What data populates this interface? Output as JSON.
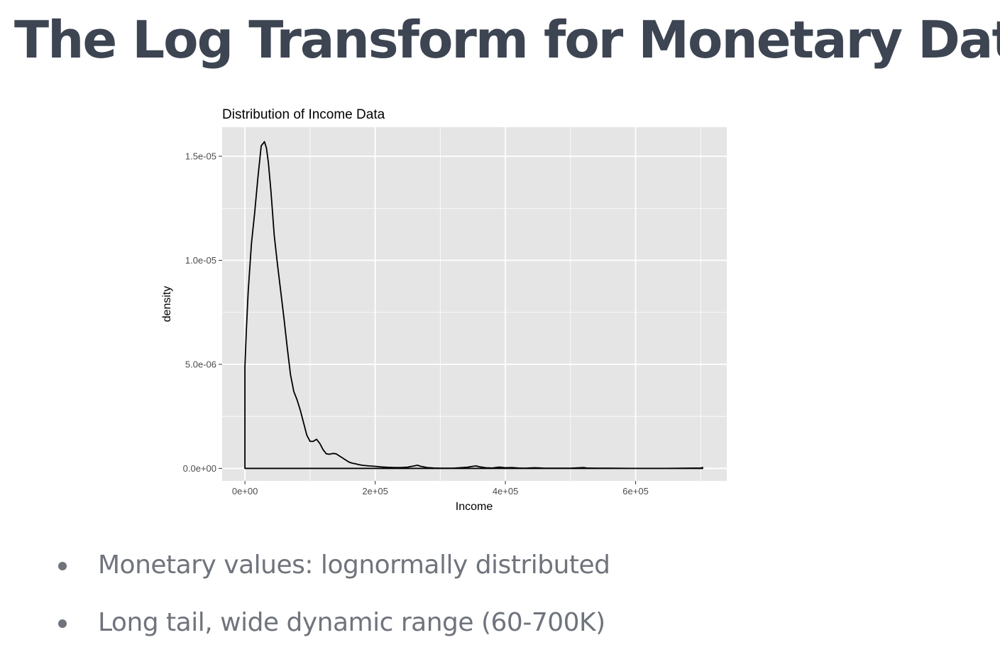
{
  "slide": {
    "title": "The Log Transform for Monetary Data"
  },
  "bullets": [
    "Monetary values: lognormally distributed",
    "Long tail, wide dynamic range (60-700K)"
  ],
  "chart_data": {
    "type": "area",
    "title": "Distribution of Income Data",
    "xlabel": "Income",
    "ylabel": "density",
    "xlim": [
      -35000,
      740000
    ],
    "ylim": [
      -6e-07,
      1.64e-05
    ],
    "x_ticks": [
      0,
      200000,
      400000,
      600000
    ],
    "x_tick_labels": [
      "0e+00",
      "2e+05",
      "4e+05",
      "6e+05"
    ],
    "y_ticks": [
      0,
      5e-06,
      1e-05,
      1.5e-05
    ],
    "y_tick_labels": [
      "0.0e+00",
      "5.0e-06",
      "1.0e-05",
      "1.5e-05"
    ],
    "grid": true,
    "colors": {
      "panel": "#e5e5e5",
      "grid": "#ffffff",
      "line": "#000000",
      "fill": "none"
    },
    "series": [
      {
        "x": [
          0,
          2000,
          5000,
          10000,
          15000,
          20000,
          25000,
          30000,
          33000,
          36000,
          40000,
          45000,
          50000,
          55000,
          60000,
          65000,
          70000,
          75000,
          80000,
          85000,
          90000,
          95000,
          100000,
          105000,
          110000,
          115000,
          120000,
          125000,
          130000,
          135000,
          140000,
          145000,
          150000,
          155000,
          160000,
          165000,
          170000,
          175000,
          180000,
          190000,
          200000,
          210000,
          220000,
          230000,
          240000,
          250000,
          260000,
          265000,
          270000,
          280000,
          290000,
          300000,
          320000,
          340000,
          350000,
          355000,
          360000,
          370000,
          380000,
          390000,
          395000,
          400000,
          410000,
          420000,
          430000,
          445000,
          460000,
          480000,
          500000,
          515000,
          520000,
          525000,
          540000,
          560000,
          600000,
          650000,
          700000,
          703000
        ],
        "y": [
          4.9e-06,
          6.5e-06,
          8.5e-06,
          1.08e-05,
          1.23e-05,
          1.4e-05,
          1.55e-05,
          1.57e-05,
          1.54e-05,
          1.47e-05,
          1.33e-05,
          1.12e-05,
          9.8e-06,
          8.5e-06,
          7.2e-06,
          5.8e-06,
          4.5e-06,
          3.7e-06,
          3.3e-06,
          2.8e-06,
          2.2e-06,
          1.6e-06,
          1.3e-06,
          1.3e-06,
          1.4e-06,
          1.2e-06,
          9e-07,
          7e-07,
          6.8e-07,
          7.2e-07,
          7e-07,
          6e-07,
          5e-07,
          4e-07,
          3e-07,
          2.5e-07,
          2.2e-07,
          1.8e-07,
          1.5e-07,
          1.2e-07,
          1e-07,
          7e-08,
          5e-08,
          4e-08,
          4e-08,
          6e-08,
          1.2e-07,
          1.5e-07,
          1e-07,
          4e-08,
          2e-08,
          1e-08,
          1e-08,
          5e-08,
          1e-07,
          1.2e-07,
          8e-08,
          3e-08,
          2e-08,
          6e-08,
          5e-08,
          3e-08,
          4e-08,
          2e-08,
          1e-08,
          3e-08,
          1e-08,
          1e-08,
          1e-08,
          3e-08,
          4e-08,
          2e-08,
          1e-08,
          1e-08,
          0.0,
          0.0,
          2e-08,
          4e-08
        ]
      }
    ]
  }
}
